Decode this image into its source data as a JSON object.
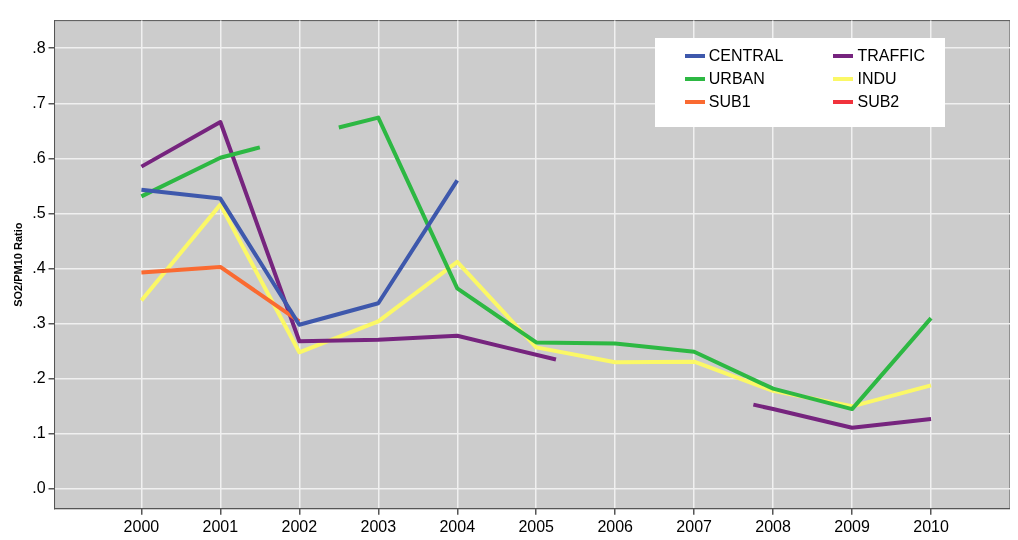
{
  "chart_data": {
    "type": "line",
    "ylabel": "SO2/PM10 Ratio",
    "xlim": [
      1998.9,
      2011
    ],
    "xticks": [
      2000,
      2001,
      2002,
      2003,
      2004,
      2005,
      2006,
      2007,
      2008,
      2009,
      2010
    ],
    "ylim": [
      -0.036,
      0.85
    ],
    "yticks": [
      {
        "value": 0,
        "label": ".0"
      },
      {
        "value": 0.1,
        "label": ".1"
      },
      {
        "value": 0.2,
        "label": ".2"
      },
      {
        "value": 0.3,
        "label": ".3"
      },
      {
        "value": 0.4,
        "label": ".4"
      },
      {
        "value": 0.5,
        "label": ".5"
      },
      {
        "value": 0.6,
        "label": ".6"
      },
      {
        "value": 0.7,
        "label": ".7"
      },
      {
        "value": 0.8,
        "label": ".8"
      }
    ],
    "grid": true,
    "legend": "top right",
    "marker": "none",
    "line_style": "solid",
    "series": [
      {
        "name": "CENTRAL",
        "color": "#3e58ac",
        "x": [
          2000,
          2001,
          2002,
          2003,
          2004
        ],
        "values": [
          0.543,
          0.527,
          0.298,
          0.337,
          0.56
        ]
      },
      {
        "name": "URBAN",
        "color": "#2db843",
        "x": [
          2000,
          2001,
          2001.5,
          2002,
          2002.5,
          2003,
          2004,
          2005,
          2006,
          2007,
          2008,
          2009,
          2010
        ],
        "values": [
          0.531,
          0.601,
          0.62,
          null,
          0.656,
          0.674,
          0.364,
          0.266,
          0.264,
          0.249,
          0.182,
          0.145,
          0.31
        ]
      },
      {
        "name": "SUB1",
        "color": "#fa6a31",
        "x": [
          2000,
          2001,
          2002
        ],
        "values": [
          0.393,
          0.403,
          0.304
        ]
      },
      {
        "name": "TRAFFIC",
        "color": "#76247e",
        "x": [
          2000,
          2001,
          2002,
          2003,
          2004,
          2005.25,
          2006,
          2007.75,
          2008,
          2009,
          2010
        ],
        "values": [
          0.585,
          0.666,
          0.268,
          0.271,
          0.278,
          0.235,
          null,
          0.153,
          0.145,
          0.111,
          0.127
        ]
      },
      {
        "name": "INDU",
        "color": "#fbf866",
        "x": [
          2000,
          2001,
          2002,
          2003,
          2004,
          2005,
          2006,
          2007,
          2008,
          2009,
          2010
        ],
        "values": [
          0.342,
          0.516,
          0.248,
          0.304,
          0.412,
          0.257,
          0.23,
          0.231,
          0.178,
          0.15,
          0.188
        ]
      },
      {
        "name": "SUB2",
        "color": "#f1323c"
      }
    ]
  }
}
